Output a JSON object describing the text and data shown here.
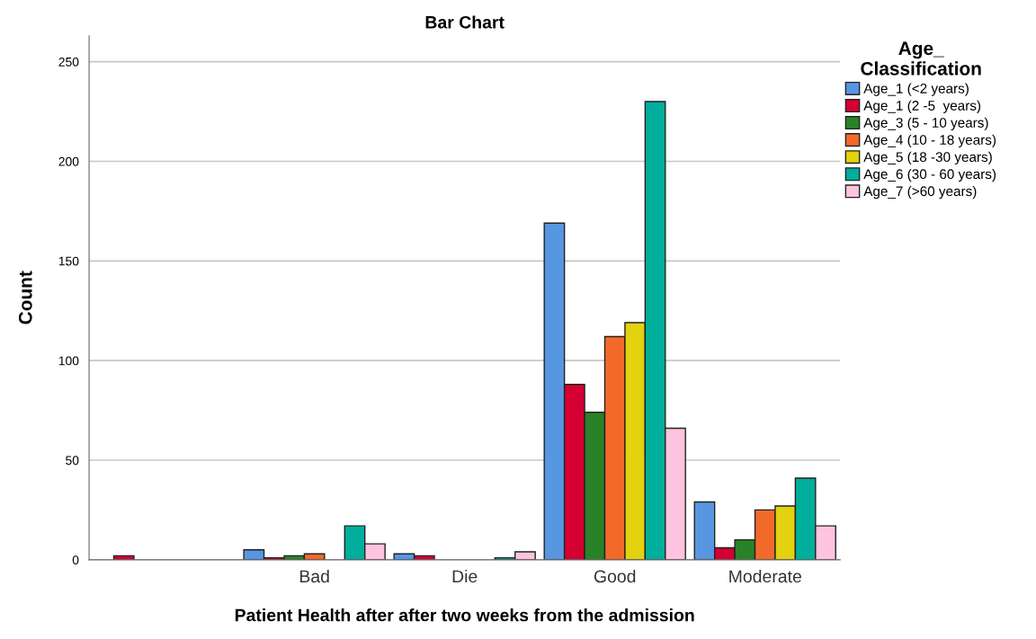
{
  "chart_data": {
    "type": "bar",
    "title": "Bar Chart",
    "xlabel": "Patient Health after after two weeks from the admission",
    "ylabel": "Count",
    "categories": [
      null,
      "Bad",
      "Die",
      "Good",
      "Moderate"
    ],
    "series": [
      {
        "name": "Age_1 (<2 years)",
        "color": "#5797e1",
        "values": [
          null,
          5,
          3,
          169,
          29
        ]
      },
      {
        "name": "Age_1 (2 -5  years)",
        "color": "#d50032",
        "values": [
          2,
          1,
          2,
          88,
          6
        ]
      },
      {
        "name": "Age_3 (5 - 10 years)",
        "color": "#2a8228",
        "values": [
          null,
          2,
          null,
          74,
          10
        ]
      },
      {
        "name": "Age_4 (10 - 18 years)",
        "color": "#f26a2a",
        "values": [
          null,
          3,
          null,
          112,
          25
        ]
      },
      {
        "name": "Age_5 (18 -30 years)",
        "color": "#e2d20f",
        "values": [
          null,
          null,
          null,
          119,
          27
        ]
      },
      {
        "name": "Age_6 (30 - 60 years)",
        "color": "#00ae9c",
        "values": [
          null,
          17,
          1,
          230,
          41
        ]
      },
      {
        "name": "Age_7 (>60 years)",
        "color": "#fec3df",
        "values": [
          null,
          8,
          4,
          66,
          17
        ]
      }
    ],
    "legend_title": "Age_\nClassification",
    "legend": "right",
    "ylim": [
      0,
      263
    ],
    "yticks": [
      0,
      50,
      100,
      150,
      200,
      250
    ],
    "grid": "y"
  }
}
